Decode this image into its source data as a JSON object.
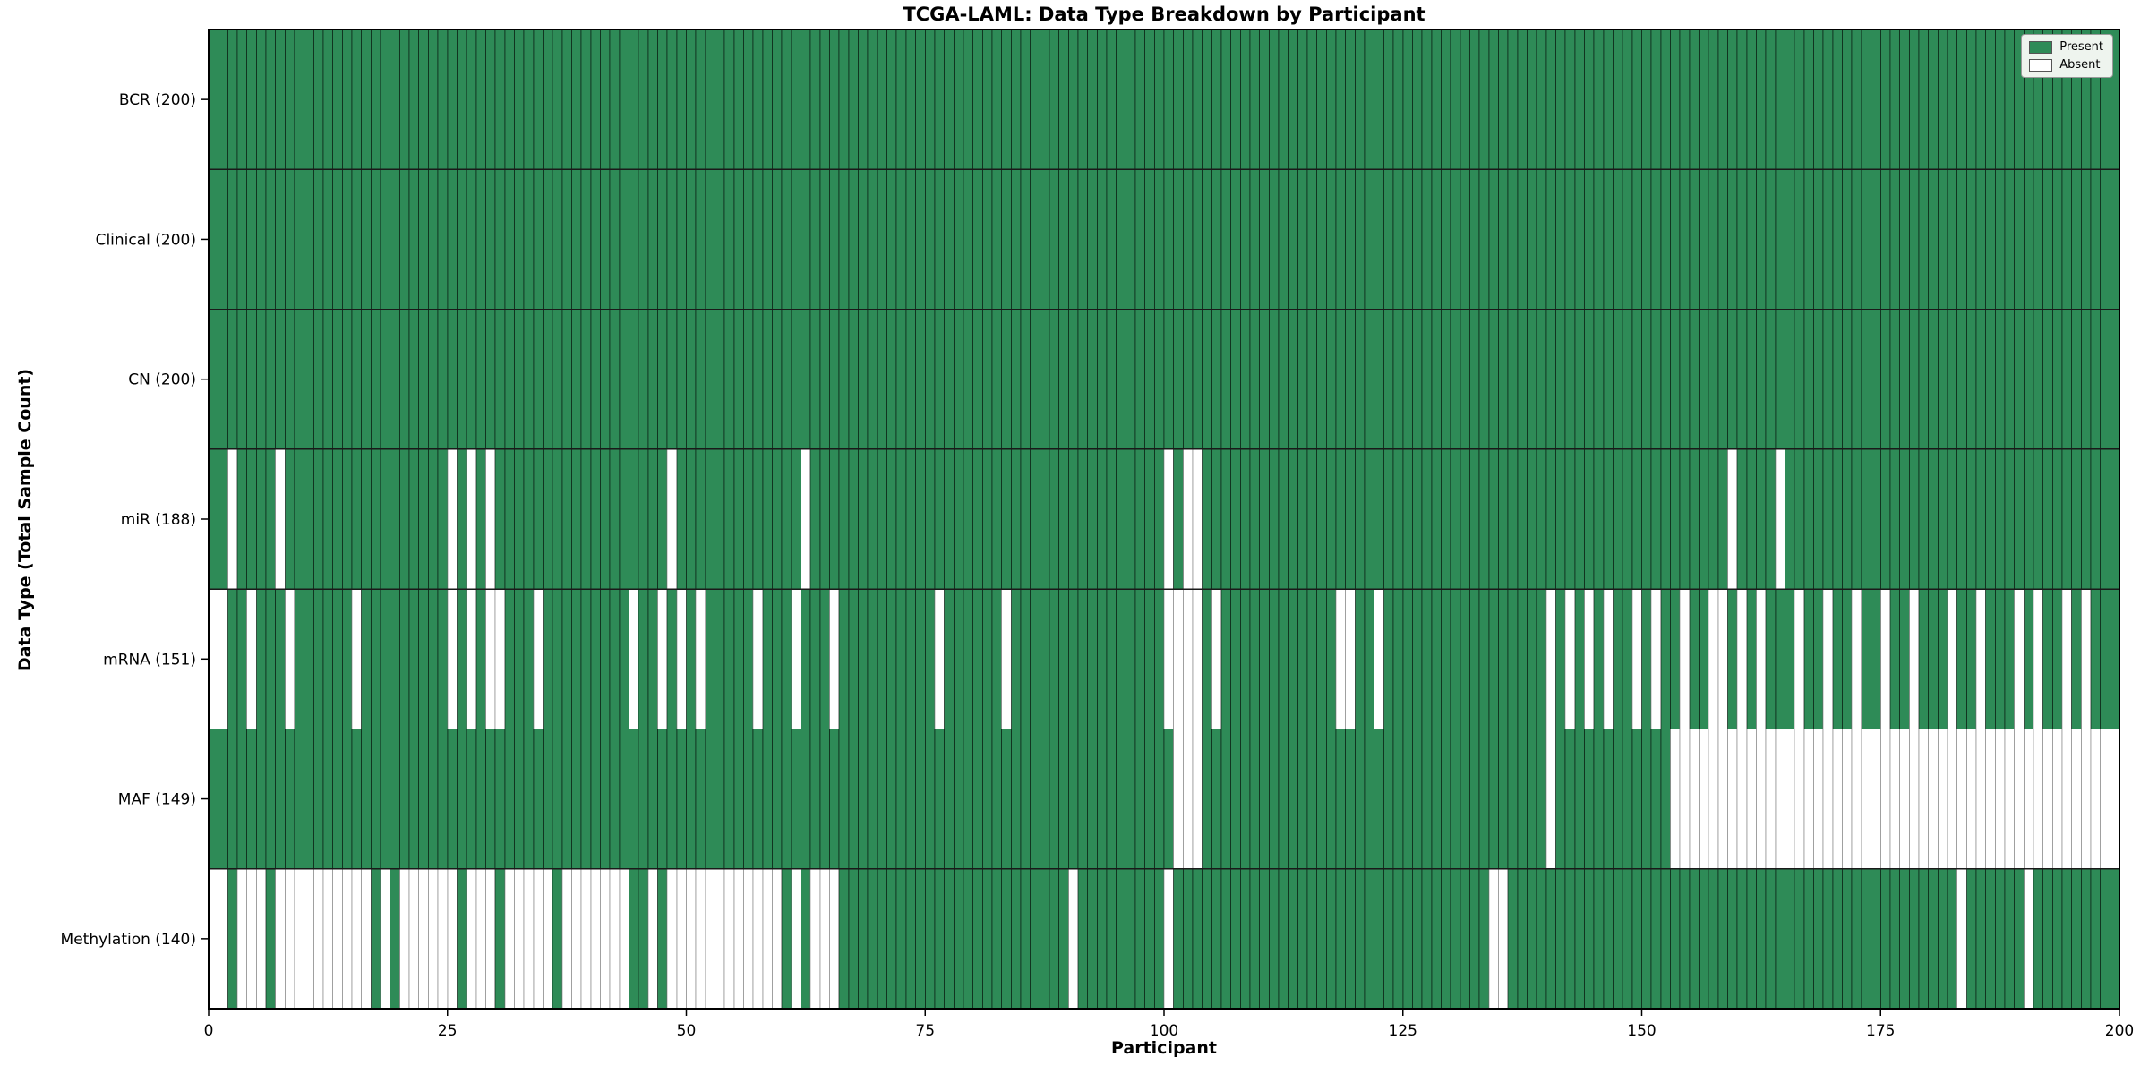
{
  "chart_data": {
    "type": "heatmap",
    "title": "TCGA-LAML: Data Type Breakdown by Participant",
    "xlabel": "Participant",
    "ylabel": "Data Type (Total Sample Count)",
    "n_participants": 200,
    "x_ticks": [
      0,
      25,
      50,
      75,
      100,
      125,
      150,
      175,
      200
    ],
    "colors": {
      "present": "#2e8b57",
      "absent": "#ffffff",
      "present_edge": "rgba(0,0,0,0.5)",
      "absent_edge": "rgba(130,130,130,0.65)",
      "row_divider": "#1a1a1a",
      "plot_border": "#000000"
    },
    "legend": [
      {
        "label": "Present",
        "color": "#2e8b57"
      },
      {
        "label": "Absent",
        "color": "#ffffff"
      }
    ],
    "rows": [
      {
        "label": "BCR (200)",
        "name": "BCR",
        "present_count": 200,
        "absent": []
      },
      {
        "label": "Clinical (200)",
        "name": "Clinical",
        "present_count": 200,
        "absent": []
      },
      {
        "label": "CN (200)",
        "name": "CN",
        "present_count": 200,
        "absent": []
      },
      {
        "label": "miR (188)",
        "name": "miR",
        "present_count": 188,
        "absent": [
          2,
          7,
          25,
          27,
          29,
          48,
          62,
          100,
          102,
          103,
          159,
          164
        ]
      },
      {
        "label": "mRNA (151)",
        "name": "mRNA",
        "present_count": 151,
        "absent": [
          0,
          1,
          4,
          8,
          15,
          25,
          27,
          29,
          30,
          34,
          44,
          47,
          49,
          51,
          57,
          61,
          65,
          76,
          83,
          100,
          101,
          102,
          103,
          105,
          118,
          119,
          122,
          140,
          142,
          144,
          146,
          149,
          151,
          154,
          157,
          158,
          160,
          162,
          166,
          169,
          172,
          175,
          178,
          182,
          185,
          189,
          191,
          194,
          196
        ]
      },
      {
        "label": "MAF (149)",
        "name": "MAF",
        "present_count": 149,
        "absent": [
          101,
          102,
          103,
          140,
          153,
          154,
          155,
          156,
          157,
          158,
          159,
          160,
          161,
          162,
          163,
          164,
          165,
          166,
          167,
          168,
          169,
          170,
          171,
          172,
          173,
          174,
          175,
          176,
          177,
          178,
          179,
          180,
          181,
          182,
          183,
          184,
          185,
          186,
          187,
          188,
          189,
          190,
          191,
          192,
          193,
          194,
          195,
          196,
          197,
          198,
          199
        ]
      },
      {
        "label": "Methylation (140)",
        "name": "Methylation",
        "present_count": 140,
        "absent": [
          0,
          1,
          3,
          4,
          5,
          7,
          8,
          9,
          10,
          11,
          12,
          13,
          14,
          15,
          16,
          18,
          20,
          21,
          22,
          23,
          24,
          25,
          27,
          28,
          29,
          31,
          32,
          33,
          34,
          35,
          37,
          38,
          39,
          40,
          41,
          42,
          43,
          46,
          48,
          49,
          50,
          51,
          52,
          53,
          54,
          55,
          56,
          57,
          58,
          59,
          61,
          63,
          64,
          65,
          90,
          100,
          134,
          135,
          183,
          190
        ]
      }
    ]
  }
}
